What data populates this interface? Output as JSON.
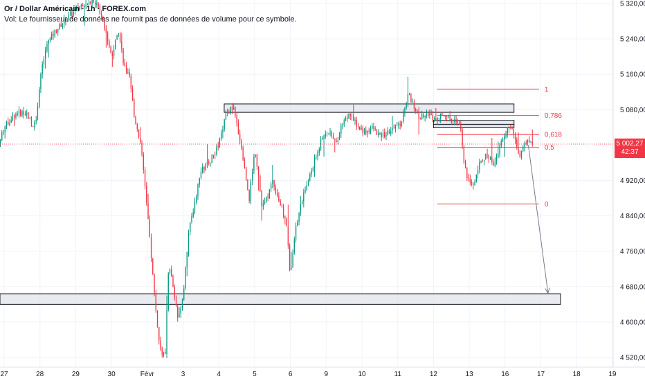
{
  "legend": {
    "title": "Or / Dollar Américain · 1h · FOREX.com",
    "volume_note": "Vol: Le fournisseur de données ne fournit pas de données de volume pour ce symbole."
  },
  "last_price": {
    "value": "5 002,27",
    "countdown": "42:37"
  },
  "colors": {
    "up": "#089981",
    "down": "#f23645",
    "fib": "#f23645",
    "box_fill": "#e0e3eb",
    "box_stroke": "#131722",
    "axis_text": "#131722",
    "grid": "#f0f3fa",
    "arrow": "#787b86"
  },
  "chart_data": {
    "type": "candlestick",
    "title": "",
    "xlabel": "",
    "ylabel": "",
    "ylim": [
      4505,
      5325
    ],
    "y_ticks": [
      {
        "value": 5320,
        "label": "5 320,00"
      },
      {
        "value": 5240,
        "label": "5 240,00"
      },
      {
        "value": 5160,
        "label": "5 160,00"
      },
      {
        "value": 5080,
        "label": "5 080,00"
      },
      {
        "value": 4920,
        "label": "4 920,00"
      },
      {
        "value": 4840,
        "label": "4 840,00"
      },
      {
        "value": 4760,
        "label": "4 760,00"
      },
      {
        "value": 4680,
        "label": "4 680,00"
      },
      {
        "value": 4600,
        "label": "4 600,00"
      },
      {
        "value": 4520,
        "label": "4 520,00"
      }
    ],
    "x_ticks": [
      {
        "label": "27",
        "t": 0
      },
      {
        "label": "28",
        "t": 1
      },
      {
        "label": "29",
        "t": 2
      },
      {
        "label": "30",
        "t": 3
      },
      {
        "label": "Févr",
        "t": 4
      },
      {
        "label": "3",
        "t": 5
      },
      {
        "label": "4",
        "t": 6
      },
      {
        "label": "5",
        "t": 7
      },
      {
        "label": "6",
        "t": 8
      },
      {
        "label": "9",
        "t": 9
      },
      {
        "label": "10",
        "t": 10
      },
      {
        "label": "11",
        "t": 11
      },
      {
        "label": "12",
        "t": 12
      },
      {
        "label": "13",
        "t": 13
      },
      {
        "label": "16",
        "t": 14
      },
      {
        "label": "17",
        "t": 15
      },
      {
        "label": "18",
        "t": 16
      },
      {
        "label": "19",
        "t": 17
      }
    ],
    "price_path": [
      [
        -0.15,
        5000
      ],
      [
        0.0,
        5040
      ],
      [
        0.3,
        5070
      ],
      [
        0.6,
        5075
      ],
      [
        0.8,
        5045
      ],
      [
        0.9,
        5060
      ],
      [
        1.0,
        5150
      ],
      [
        1.2,
        5230
      ],
      [
        1.5,
        5265
      ],
      [
        1.8,
        5290
      ],
      [
        2.2,
        5320
      ],
      [
        2.5,
        5330
      ],
      [
        2.75,
        5290
      ],
      [
        3.0,
        5200
      ],
      [
        3.2,
        5260
      ],
      [
        3.35,
        5180
      ],
      [
        3.5,
        5150
      ],
      [
        3.65,
        5060
      ],
      [
        3.8,
        5010
      ],
      [
        3.95,
        4900
      ],
      [
        4.1,
        4760
      ],
      [
        4.2,
        4660
      ],
      [
        4.35,
        4540
      ],
      [
        4.5,
        4520
      ],
      [
        4.6,
        4740
      ],
      [
        4.75,
        4660
      ],
      [
        4.85,
        4610
      ],
      [
        5.0,
        4660
      ],
      [
        5.15,
        4800
      ],
      [
        5.3,
        4860
      ],
      [
        5.5,
        4940
      ],
      [
        5.8,
        4970
      ],
      [
        6.0,
        5000
      ],
      [
        6.2,
        5070
      ],
      [
        6.4,
        5085
      ],
      [
        6.6,
        5010
      ],
      [
        6.75,
        4930
      ],
      [
        6.85,
        4880
      ],
      [
        7.0,
        4990
      ],
      [
        7.1,
        4940
      ],
      [
        7.2,
        4860
      ],
      [
        7.35,
        4880
      ],
      [
        7.5,
        4920
      ],
      [
        7.7,
        4870
      ],
      [
        7.9,
        4820
      ],
      [
        8.0,
        4700
      ],
      [
        8.1,
        4790
      ],
      [
        8.3,
        4870
      ],
      [
        8.5,
        4920
      ],
      [
        8.7,
        4970
      ],
      [
        8.9,
        5020
      ],
      [
        9.1,
        5030
      ],
      [
        9.3,
        5010
      ],
      [
        9.5,
        5060
      ],
      [
        9.7,
        5070
      ],
      [
        9.9,
        5040
      ],
      [
        10.1,
        5030
      ],
      [
        10.3,
        5040
      ],
      [
        10.5,
        5020
      ],
      [
        10.7,
        5025
      ],
      [
        10.9,
        5040
      ],
      [
        11.1,
        5050
      ],
      [
        11.3,
        5115
      ],
      [
        11.45,
        5090
      ],
      [
        11.6,
        5060
      ],
      [
        11.8,
        5075
      ],
      [
        12.0,
        5060
      ],
      [
        12.2,
        5070
      ],
      [
        12.5,
        5060
      ],
      [
        12.75,
        5050
      ],
      [
        12.85,
        4960
      ],
      [
        12.95,
        4920
      ],
      [
        13.1,
        4910
      ],
      [
        13.3,
        4960
      ],
      [
        13.5,
        4980
      ],
      [
        13.7,
        4955
      ],
      [
        13.9,
        5010
      ],
      [
        14.1,
        5040
      ],
      [
        14.25,
        5025
      ],
      [
        14.4,
        4975
      ],
      [
        14.55,
        5000
      ],
      [
        14.7,
        5010
      ],
      [
        14.8,
        5003
      ]
    ],
    "zones": [
      {
        "name": "resistance-zone",
        "t0": 6.15,
        "t1": 14.25,
        "y0": 5074,
        "y1": 5093
      },
      {
        "name": "retest-zone",
        "t0": 12.0,
        "t1": 14.25,
        "y0": 5046,
        "y1": 5056
      },
      {
        "name": "small-zone",
        "t0": 12.0,
        "t1": 14.25,
        "y0": 5039,
        "y1": 5047
      },
      {
        "name": "support-zone",
        "t0": -0.2,
        "t1": 15.55,
        "y0": 4640,
        "y1": 4664
      }
    ],
    "fib_levels": [
      {
        "label": "1",
        "value": 5126
      },
      {
        "label": "0,786",
        "value": 5067
      },
      {
        "label": "0,618",
        "value": 5024
      },
      {
        "label": "0,5",
        "value": 4995
      },
      {
        "label": "0",
        "value": 4867
      }
    ],
    "fib_range": {
      "t0": 12.1,
      "t1": 14.95
    },
    "projection": {
      "from": [
        14.65,
        5000
      ],
      "to": [
        15.2,
        4665
      ]
    }
  }
}
